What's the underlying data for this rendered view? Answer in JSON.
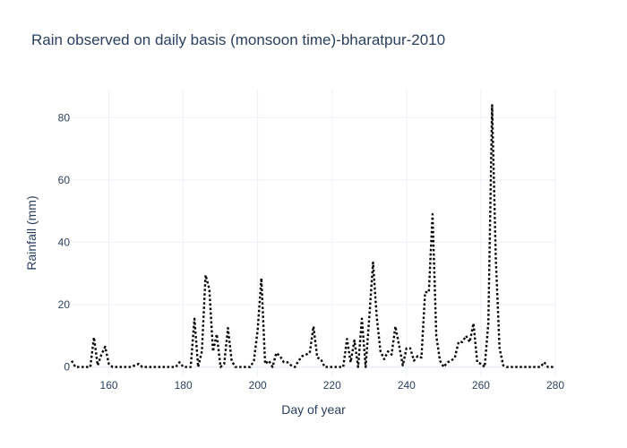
{
  "chart_data": {
    "type": "line",
    "title": "Rain observed on daily basis (monsoon time)-bharatpur-2010",
    "xlabel": "Day of year",
    "ylabel": "Rainfall (mm)",
    "xlim": [
      150,
      280
    ],
    "ylim": [
      -3,
      89
    ],
    "xticks": [
      160,
      180,
      200,
      220,
      240,
      260,
      280
    ],
    "yticks": [
      0,
      20,
      40,
      60,
      80
    ],
    "grid": true,
    "legend": "none",
    "line_style": "dotted",
    "line_color": "#000000",
    "series": [
      {
        "x": [
          150,
          151,
          152,
          153,
          154,
          155,
          156,
          157,
          158,
          159,
          160,
          161,
          162,
          163,
          164,
          165,
          166,
          167,
          168,
          169,
          170,
          171,
          172,
          173,
          174,
          175,
          176,
          177,
          178,
          179,
          180,
          181,
          182,
          183,
          184,
          185,
          186,
          187,
          188,
          189,
          190,
          191,
          192,
          193,
          194,
          195,
          196,
          197,
          198,
          199,
          200,
          201,
          202,
          203,
          204,
          205,
          206,
          207,
          208,
          209,
          210,
          211,
          212,
          213,
          214,
          215,
          216,
          217,
          218,
          219,
          220,
          221,
          222,
          223,
          224,
          225,
          226,
          227,
          228,
          229,
          230,
          231,
          232,
          233,
          234,
          235,
          236,
          237,
          238,
          239,
          240,
          241,
          242,
          243,
          244,
          245,
          246,
          247,
          248,
          249,
          250,
          251,
          252,
          253,
          254,
          255,
          256,
          257,
          258,
          259,
          260,
          261,
          262,
          263,
          264,
          265,
          266,
          267,
          268,
          269,
          270,
          271,
          272,
          273,
          274,
          275,
          276,
          277,
          278,
          279,
          280
        ],
        "y": [
          2,
          0,
          0,
          0,
          0,
          0,
          9.5,
          0.5,
          4,
          6.5,
          1,
          0,
          0,
          0,
          0,
          0,
          0,
          0.5,
          1,
          0,
          0,
          0,
          0,
          0,
          0,
          0,
          0,
          0,
          0,
          1.5,
          0,
          0,
          0,
          15.5,
          0,
          5,
          29.5,
          25,
          5,
          10.5,
          0,
          1,
          12.5,
          2,
          0,
          0,
          0,
          0,
          0,
          2,
          12,
          28.5,
          1,
          2,
          0,
          4.5,
          3.5,
          1.5,
          1.5,
          0.5,
          0,
          2,
          3.5,
          4,
          4.5,
          13,
          3,
          2.5,
          0,
          0,
          0,
          0,
          0,
          0,
          9,
          1.5,
          8.5,
          0,
          15.5,
          0,
          16,
          33.5,
          16,
          5,
          2.5,
          5,
          4,
          13,
          7,
          0.5,
          6,
          6,
          2,
          3.5,
          3,
          24,
          24,
          49,
          10,
          2,
          0,
          1.5,
          2,
          3,
          8,
          8,
          10,
          8,
          14,
          1.5,
          1,
          0,
          14,
          84,
          35,
          6,
          0.5,
          0,
          0,
          0,
          0,
          0,
          0,
          0,
          0,
          0,
          0,
          1.5,
          0,
          0,
          0
        ]
      }
    ]
  }
}
